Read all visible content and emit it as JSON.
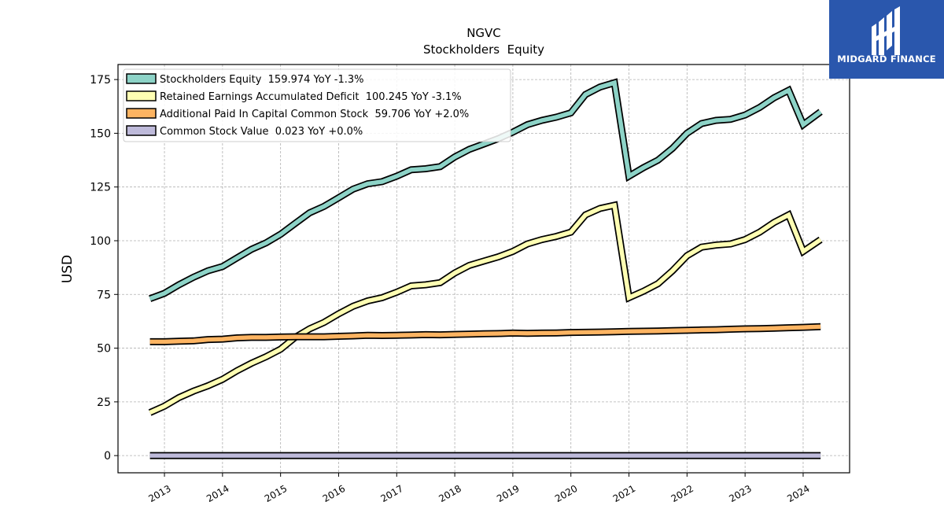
{
  "header": {
    "title_line1": "NGVC",
    "title_line2": "Stockholders  Equity"
  },
  "brand": {
    "name": "MIDGARD FINANCE",
    "color": "#2a57ad"
  },
  "chart_data": {
    "type": "line",
    "title": "NGVC\nStockholders  Equity",
    "xlabel": "",
    "ylabel": "USD",
    "ylim": [
      -8,
      182
    ],
    "xlim": [
      2012.2,
      2024.8
    ],
    "yticks": [
      0,
      25,
      50,
      75,
      100,
      125,
      150,
      175
    ],
    "xticks": [
      "2013",
      "2014",
      "2015",
      "2016",
      "2017",
      "2018",
      "2019",
      "2020",
      "2021",
      "2022",
      "2023",
      "2024"
    ],
    "grid": true,
    "legend_position": "top-left",
    "series": [
      {
        "name": "Stockholders Equity  159.974 YoY -1.3%",
        "color": "#8dd3c7",
        "points": [
          [
            2012.75,
            73
          ],
          [
            2013.0,
            75.5
          ],
          [
            2013.25,
            79.5
          ],
          [
            2013.5,
            83
          ],
          [
            2013.75,
            86
          ],
          [
            2014.0,
            88
          ],
          [
            2014.25,
            92
          ],
          [
            2014.5,
            96
          ],
          [
            2014.75,
            99
          ],
          [
            2015.0,
            103
          ],
          [
            2015.25,
            108
          ],
          [
            2015.5,
            113
          ],
          [
            2015.75,
            116
          ],
          [
            2016.0,
            120
          ],
          [
            2016.25,
            124
          ],
          [
            2016.5,
            126.5
          ],
          [
            2016.75,
            127.5
          ],
          [
            2017.0,
            130
          ],
          [
            2017.25,
            133
          ],
          [
            2017.5,
            133.5
          ],
          [
            2017.75,
            134.5
          ],
          [
            2018.0,
            139
          ],
          [
            2018.25,
            142.5
          ],
          [
            2018.5,
            145
          ],
          [
            2018.75,
            147.5
          ],
          [
            2019.0,
            150.5
          ],
          [
            2019.25,
            154
          ],
          [
            2019.5,
            156
          ],
          [
            2019.75,
            157.5
          ],
          [
            2020.0,
            159.5
          ],
          [
            2020.25,
            168
          ],
          [
            2020.5,
            171.5
          ],
          [
            2020.75,
            173.5
          ],
          [
            2021.0,
            130
          ],
          [
            2021.25,
            134
          ],
          [
            2021.5,
            137.5
          ],
          [
            2021.75,
            143
          ],
          [
            2022.0,
            150
          ],
          [
            2022.25,
            154.5
          ],
          [
            2022.5,
            156
          ],
          [
            2022.75,
            156.5
          ],
          [
            2023.0,
            158.5
          ],
          [
            2023.25,
            162
          ],
          [
            2023.5,
            166.5
          ],
          [
            2023.75,
            170
          ],
          [
            2024.0,
            154
          ],
          [
            2024.3,
            160
          ]
        ]
      },
      {
        "name": "Retained Earnings Accumulated Deficit  100.245 YoY -3.1%",
        "color": "#ffffb3",
        "points": [
          [
            2012.75,
            20
          ],
          [
            2013.0,
            23
          ],
          [
            2013.25,
            27
          ],
          [
            2013.5,
            30
          ],
          [
            2013.75,
            32.5
          ],
          [
            2014.0,
            35.5
          ],
          [
            2014.25,
            39.5
          ],
          [
            2014.5,
            43
          ],
          [
            2014.75,
            46
          ],
          [
            2015.0,
            49.5
          ],
          [
            2015.25,
            55
          ],
          [
            2015.5,
            59
          ],
          [
            2015.75,
            62
          ],
          [
            2016.0,
            66
          ],
          [
            2016.25,
            69.5
          ],
          [
            2016.5,
            72
          ],
          [
            2016.75,
            73.5
          ],
          [
            2017.0,
            76
          ],
          [
            2017.25,
            79
          ],
          [
            2017.5,
            79.5
          ],
          [
            2017.75,
            80.5
          ],
          [
            2018.0,
            85
          ],
          [
            2018.25,
            88.5
          ],
          [
            2018.5,
            90.5
          ],
          [
            2018.75,
            92.5
          ],
          [
            2019.0,
            95
          ],
          [
            2019.25,
            98.5
          ],
          [
            2019.5,
            100.5
          ],
          [
            2019.75,
            102
          ],
          [
            2020.0,
            104
          ],
          [
            2020.25,
            112
          ],
          [
            2020.5,
            115
          ],
          [
            2020.75,
            116.5
          ],
          [
            2021.0,
            73.5
          ],
          [
            2021.25,
            76.5
          ],
          [
            2021.5,
            80
          ],
          [
            2021.75,
            86
          ],
          [
            2022.0,
            93
          ],
          [
            2022.25,
            97
          ],
          [
            2022.5,
            98
          ],
          [
            2022.75,
            98.5
          ],
          [
            2023.0,
            100.5
          ],
          [
            2023.25,
            104
          ],
          [
            2023.5,
            108.5
          ],
          [
            2023.75,
            112
          ],
          [
            2024.0,
            95
          ],
          [
            2024.3,
            100.5
          ]
        ]
      },
      {
        "name": "Additional Paid In Capital Common Stock  59.706 YoY +2.0%",
        "color": "#fdb462",
        "points": [
          [
            2012.75,
            53
          ],
          [
            2013.0,
            53
          ],
          [
            2013.25,
            53.2
          ],
          [
            2013.5,
            53.4
          ],
          [
            2013.75,
            54
          ],
          [
            2014.0,
            54.2
          ],
          [
            2014.25,
            54.8
          ],
          [
            2014.5,
            55
          ],
          [
            2014.75,
            55
          ],
          [
            2015.0,
            55.2
          ],
          [
            2015.25,
            55.3
          ],
          [
            2015.5,
            55.3
          ],
          [
            2015.75,
            55.3
          ],
          [
            2016.0,
            55.5
          ],
          [
            2016.25,
            55.7
          ],
          [
            2016.5,
            56
          ],
          [
            2016.75,
            55.9
          ],
          [
            2017.0,
            56
          ],
          [
            2017.25,
            56.1
          ],
          [
            2017.5,
            56.3
          ],
          [
            2017.75,
            56.2
          ],
          [
            2018.0,
            56.4
          ],
          [
            2018.25,
            56.5
          ],
          [
            2018.5,
            56.7
          ],
          [
            2018.75,
            56.8
          ],
          [
            2019.0,
            57
          ],
          [
            2019.25,
            56.9
          ],
          [
            2019.5,
            57
          ],
          [
            2019.75,
            57.1
          ],
          [
            2020.0,
            57.3
          ],
          [
            2020.25,
            57.4
          ],
          [
            2020.5,
            57.5
          ],
          [
            2020.75,
            57.6
          ],
          [
            2021.0,
            57.8
          ],
          [
            2021.25,
            57.9
          ],
          [
            2021.5,
            58
          ],
          [
            2021.75,
            58.2
          ],
          [
            2022.0,
            58.3
          ],
          [
            2022.25,
            58.5
          ],
          [
            2022.5,
            58.6
          ],
          [
            2022.75,
            58.8
          ],
          [
            2023.0,
            59
          ],
          [
            2023.25,
            59.1
          ],
          [
            2023.5,
            59.3
          ],
          [
            2023.75,
            59.5
          ],
          [
            2024.0,
            59.7
          ],
          [
            2024.3,
            60
          ]
        ]
      },
      {
        "name": "Common Stock Value  0.023 YoY +0.0%",
        "color": "#bebada",
        "points": [
          [
            2012.75,
            0
          ],
          [
            2024.3,
            0
          ]
        ]
      }
    ]
  }
}
